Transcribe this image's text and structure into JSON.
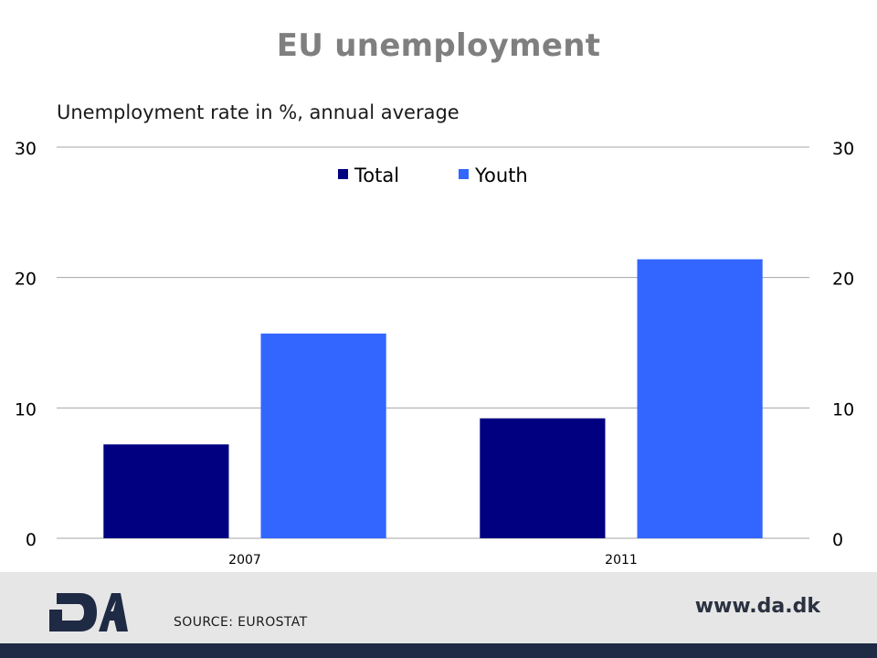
{
  "slide": {
    "title": "EU unemployment",
    "source": "SOURCE: EUROSTAT",
    "website": "www.da.dk",
    "logo_text": "DA"
  },
  "colors": {
    "total": "#000080",
    "youth": "#3366ff",
    "title": "#7f7f7f",
    "footer": "#e6e6e6",
    "band": "#1f2a44"
  },
  "chart_data": {
    "type": "bar",
    "title": "",
    "subtitle": "Unemployment rate in %, annual average",
    "categories": [
      "2007",
      "2011"
    ],
    "series": [
      {
        "name": "Total",
        "values": [
          7.2,
          9.2
        ],
        "color": "#000080"
      },
      {
        "name": "Youth",
        "values": [
          15.7,
          21.4
        ],
        "color": "#3366ff"
      }
    ],
    "xlabel": "",
    "ylabel": "",
    "ylim": [
      0,
      30
    ],
    "yticks": [
      0,
      10,
      20,
      30
    ],
    "secondary_y_axis": true,
    "grid": true,
    "legend_position": "top"
  }
}
